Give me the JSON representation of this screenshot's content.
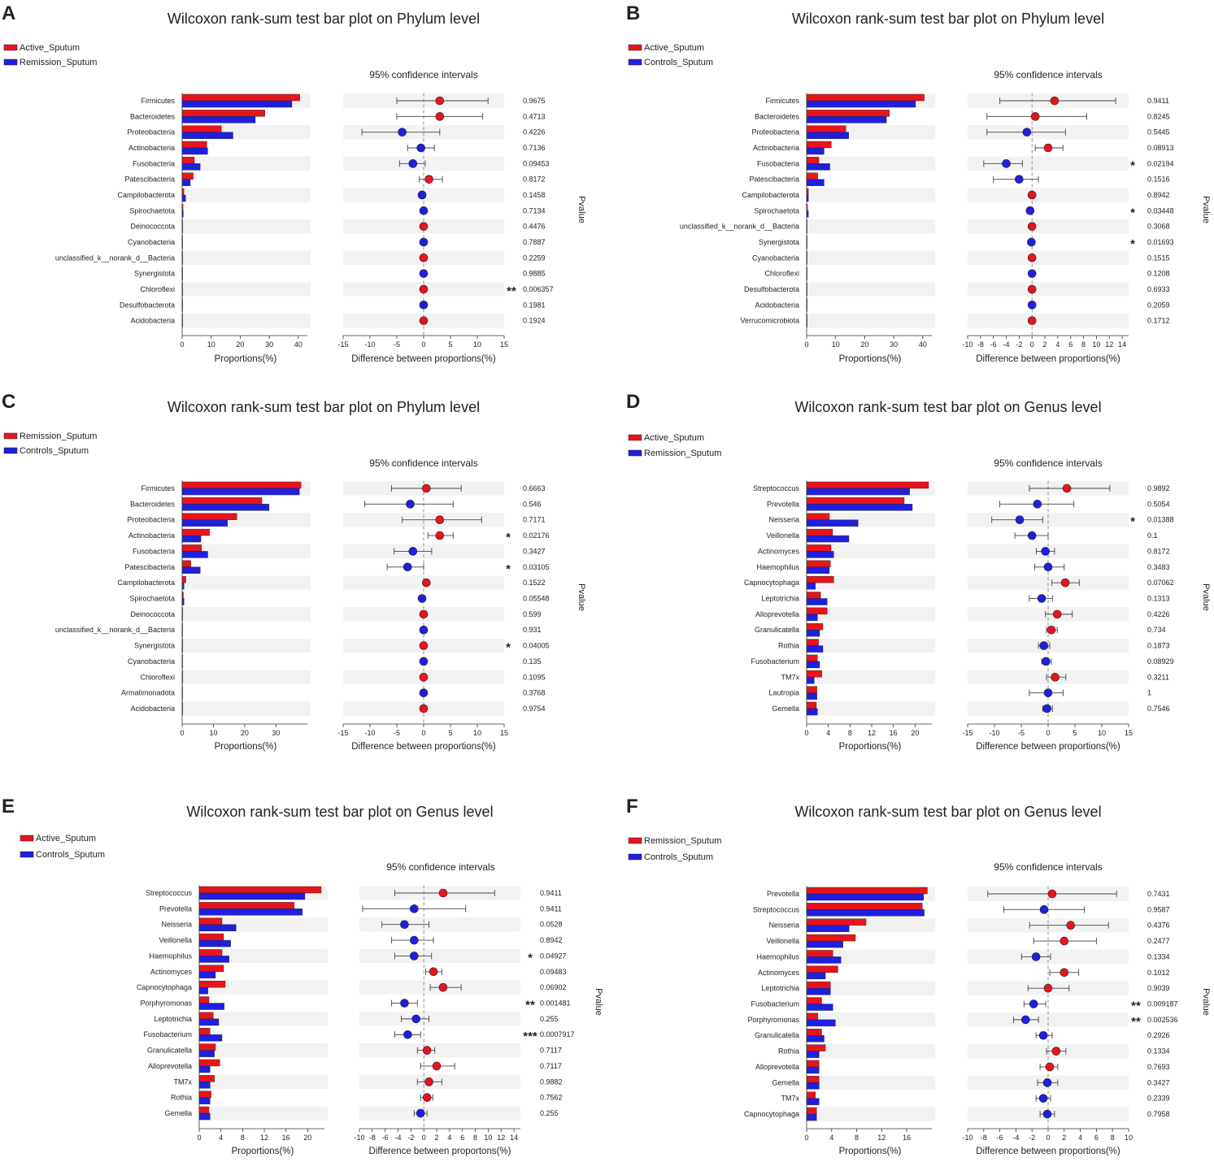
{
  "colors": {
    "group1": "#e8141c",
    "group2": "#1f1fe0",
    "star": "#f06a6a",
    "band": "#f2f2f2",
    "axis": "#333333"
  },
  "chart_data": [
    {
      "type": "bar",
      "panel_letter": "A",
      "title": "Wilcoxon rank-sum test bar plot on Phylum level",
      "legend": [
        "Active_Sputum",
        "Remission_Sputum"
      ],
      "ci_title": "95% confidence intervals",
      "xlabel_left": "Proportions(%)",
      "xlabel_right": "Difference between proportions(%)",
      "pvalue_label": "Pvalue",
      "prop_ticks": [
        0,
        10,
        20,
        30,
        40
      ],
      "prop_max": 42,
      "diff_ticks": [
        -15,
        -10,
        -5,
        0,
        5,
        10,
        15
      ],
      "diff_range": [
        -15,
        15
      ],
      "categories": [
        "Firmicutes",
        "Bacteroidetes",
        "Proteobacteria",
        "Actinobacteria",
        "Fusobacteria",
        "Patescibacteria",
        "Campilobacterota",
        "Spirochaetota",
        "Deinococcota",
        "Cyanobacteria",
        "unclassified_k__norank_d__Bacteria",
        "Synergistota",
        "Chloroflexi",
        "Desulfobacterota",
        "Acidobacteria"
      ],
      "series": [
        {
          "name": "Active_Sputum",
          "values": [
            40.5,
            28.5,
            13.5,
            8.5,
            4.2,
            3.8,
            0.6,
            0.3,
            0.1,
            0.1,
            0.1,
            0.1,
            0.05,
            0.05,
            0.05
          ]
        },
        {
          "name": "Remission_Sputum",
          "values": [
            37.8,
            25.2,
            17.5,
            8.8,
            6.2,
            2.8,
            1.2,
            0.4,
            0.1,
            0.1,
            0.1,
            0.1,
            0.05,
            0.05,
            0.05
          ]
        }
      ],
      "diff": [
        3.0,
        3.0,
        -4.0,
        -0.5,
        -2.0,
        1.0,
        -0.3,
        0.0,
        0.0,
        0.0,
        0.0,
        0.0,
        0.0,
        0.0,
        0.0
      ],
      "ci_low": [
        -5.0,
        -5.0,
        -11.5,
        -3.0,
        -4.5,
        -0.8,
        -0.8,
        -0.2,
        -0.1,
        -0.1,
        -0.1,
        -0.1,
        -0.1,
        -0.1,
        -0.1
      ],
      "ci_high": [
        12.0,
        11.0,
        3.0,
        2.0,
        0.3,
        3.5,
        0.3,
        0.2,
        0.1,
        0.1,
        0.1,
        0.1,
        0.1,
        0.1,
        0.1
      ],
      "pvalues": [
        "0.9675",
        "0.4713",
        "0.4226",
        "0.7136",
        "0.09453",
        "0.8172",
        "0.1458",
        "0.7134",
        "0.4476",
        "0.7887",
        "0.2259",
        "0.9885",
        "0.006357",
        "0.1981",
        "0.1924"
      ],
      "sig": [
        "",
        "",
        "",
        "",
        "",
        "",
        "",
        "",
        "",
        "",
        "",
        "",
        "**",
        "",
        ""
      ]
    },
    {
      "type": "bar",
      "panel_letter": "B",
      "title": "Wilcoxon rank-sum test bar plot on Phylum level",
      "legend": [
        "Active_Sputum",
        "Controls_Sputum"
      ],
      "ci_title": "95% confidence intervals",
      "xlabel_left": "Proportions(%)",
      "xlabel_right": "Difference between proportions(%)",
      "pvalue_label": "Pvalue",
      "prop_ticks": [
        0,
        10,
        20,
        30,
        40
      ],
      "prop_max": 42,
      "diff_ticks": [
        -10,
        -8,
        -6,
        -4,
        -2,
        0,
        2,
        4,
        6,
        8,
        10,
        12,
        14
      ],
      "diff_range": [
        -10,
        15
      ],
      "categories": [
        "Firmicutes",
        "Bacteroidetes",
        "Proteobacteria",
        "Actinobacteria",
        "Fusobacteria",
        "Patescibacteria",
        "Campilobacterota",
        "Spirochaetota",
        "unclassified_k__norank_d__Bacteria",
        "Synergistota",
        "Cyanobacteria",
        "Chloroflexi",
        "Desulfobacterota",
        "Acidobacteria",
        "Verrucomicrobiota"
      ],
      "series": [
        {
          "name": "Active_Sputum",
          "values": [
            40.5,
            28.5,
            13.5,
            8.5,
            4.2,
            3.8,
            0.6,
            0.3,
            0.1,
            0.1,
            0.1,
            0.05,
            0.05,
            0.05,
            0.05
          ]
        },
        {
          "name": "Controls_Sputum",
          "values": [
            37.5,
            27.5,
            14.5,
            6.0,
            8.0,
            6.0,
            0.6,
            0.6,
            0.1,
            0.05,
            0.05,
            0.05,
            0.05,
            0.05,
            0.05
          ]
        }
      ],
      "diff": [
        3.5,
        0.5,
        -0.8,
        2.5,
        -4.0,
        -2.0,
        0.0,
        -0.3,
        0.0,
        -0.1,
        0.0,
        0.0,
        0.0,
        0.0,
        0.0
      ],
      "ci_low": [
        -5.0,
        -7.0,
        -7.0,
        0.5,
        -7.5,
        -6.0,
        -0.3,
        -0.6,
        -0.1,
        -0.3,
        -0.1,
        -0.1,
        -0.1,
        -0.1,
        -0.1
      ],
      "ci_high": [
        13.0,
        8.5,
        5.2,
        4.8,
        -1.5,
        1.0,
        0.3,
        -0.05,
        0.1,
        0.05,
        0.1,
        0.1,
        0.1,
        0.1,
        0.1
      ],
      "pvalues": [
        "0.9411",
        "0.8245",
        "0.5445",
        "0.08913",
        "0.02194",
        "0.1516",
        "0.8942",
        "0.03448",
        "0.3068",
        "0.01693",
        "0.1515",
        "0.1208",
        "0.6933",
        "0.2059",
        "0.1712"
      ],
      "sig": [
        "",
        "",
        "",
        "",
        "*",
        "",
        "",
        "*",
        "",
        "*",
        "",
        "",
        "",
        "",
        ""
      ]
    },
    {
      "type": "bar",
      "panel_letter": "C",
      "title": "Wilcoxon rank-sum test bar plot on Phylum level",
      "legend": [
        "Remission_Sputum",
        "Controls_Sputum"
      ],
      "ci_title": "95% confidence intervals",
      "xlabel_left": "Proportions(%)",
      "xlabel_right": "Difference between proportions(%)",
      "pvalue_label": "Pvalue",
      "prop_ticks": [
        0,
        10,
        20,
        30
      ],
      "prop_max": 39,
      "diff_ticks": [
        -15,
        -10,
        -5,
        0,
        5,
        10,
        15
      ],
      "diff_range": [
        -15,
        15
      ],
      "categories": [
        "Firmicutes",
        "Bacteroidetes",
        "Proteobacteria",
        "Actinobacteria",
        "Fusobacteria",
        "Patescibacteria",
        "Campilobacterota",
        "Spirochaetota",
        "Deinococcota",
        "unclassified_k__norank_d__Bacteria",
        "Synergistota",
        "Cyanobacteria",
        "Chloroflexi",
        "Armatimonadota",
        "Acidobacteria"
      ],
      "series": [
        {
          "name": "Remission_Sputum",
          "values": [
            38.0,
            25.5,
            17.5,
            8.8,
            6.2,
            2.8,
            1.2,
            0.4,
            0.1,
            0.1,
            0.1,
            0.05,
            0.05,
            0.05,
            0.05
          ]
        },
        {
          "name": "Controls_Sputum",
          "values": [
            37.5,
            27.8,
            14.5,
            6.0,
            8.2,
            5.8,
            0.6,
            0.6,
            0.1,
            0.1,
            0.1,
            0.05,
            0.05,
            0.05,
            0.05
          ]
        }
      ],
      "diff": [
        0.5,
        -2.5,
        3.0,
        3.0,
        -2.0,
        -3.0,
        0.5,
        -0.3,
        0.0,
        0.0,
        0.0,
        0.0,
        0.0,
        0.0,
        0.0
      ],
      "ci_low": [
        -6.0,
        -11.0,
        -4.0,
        0.8,
        -5.5,
        -6.8,
        0.0,
        -0.7,
        -0.1,
        -0.1,
        -0.1,
        -0.1,
        -0.1,
        -0.1,
        -0.1
      ],
      "ci_high": [
        7.0,
        5.5,
        10.8,
        5.5,
        1.5,
        0.0,
        1.0,
        0.2,
        0.1,
        0.1,
        0.1,
        0.1,
        0.1,
        0.1,
        0.1
      ],
      "pvalues": [
        "0.6663",
        "0.546",
        "0.7171",
        "0.02176",
        "0.3427",
        "0.03105",
        "0.1522",
        "0.05548",
        "0.599",
        "0.931",
        "0.04005",
        "0.135",
        "0.1095",
        "0.3768",
        "0.9754"
      ],
      "sig": [
        "",
        "",
        "",
        "*",
        "",
        "*",
        "",
        "",
        "",
        "",
        "*",
        "",
        "",
        "",
        ""
      ]
    },
    {
      "type": "bar",
      "panel_letter": "D",
      "title": "Wilcoxon rank-sum test bar plot on Genus level",
      "legend": [
        "Active_Sputum",
        "Remission_Sputum"
      ],
      "ci_title": "95% confidence intervals",
      "xlabel_left": "Proportions(%)",
      "xlabel_right": "Difference between proportions(%)",
      "pvalue_label": "Pvalue",
      "prop_ticks": [
        0,
        4,
        8,
        12,
        16,
        20
      ],
      "prop_max": 22.5,
      "diff_ticks": [
        -15,
        -10,
        -5,
        0,
        5,
        10,
        15
      ],
      "diff_range": [
        -15,
        15
      ],
      "categories": [
        "Streptococcus",
        "Prevotella",
        "Neisseria",
        "Veillonella",
        "Actinomyces",
        "Haemophilus",
        "Capnocytophaga",
        "Leptotrichia",
        "Alloprevotella",
        "Granulicatella",
        "Rothia",
        "Fusobacterium",
        "TM7x",
        "Lautropia",
        "Gemella"
      ],
      "series": [
        {
          "name": "Active_Sputum",
          "values": [
            22.5,
            18.0,
            4.2,
            4.8,
            4.5,
            4.4,
            5.0,
            2.6,
            3.8,
            3.0,
            2.2,
            2.0,
            2.8,
            1.9,
            1.8
          ]
        },
        {
          "name": "Remission_Sputum",
          "values": [
            19.0,
            19.5,
            9.5,
            7.8,
            5.0,
            4.2,
            1.6,
            3.8,
            2.0,
            2.4,
            3.0,
            2.4,
            1.4,
            1.9,
            2.0
          ]
        }
      ],
      "diff": [
        3.5,
        -2.0,
        -5.3,
        -3.0,
        -0.5,
        0.0,
        3.2,
        -1.2,
        1.7,
        0.6,
        -0.8,
        -0.4,
        1.3,
        0.0,
        -0.2
      ],
      "ci_low": [
        -3.5,
        -9.0,
        -10.5,
        -6.2,
        -2.2,
        -2.5,
        0.7,
        -3.5,
        -0.5,
        -0.3,
        -1.8,
        -1.2,
        -0.3,
        -3.5,
        -1.0
      ],
      "ci_high": [
        11.5,
        4.8,
        -1.0,
        0.0,
        1.2,
        3.0,
        5.8,
        0.8,
        4.5,
        1.7,
        0.3,
        0.6,
        3.3,
        2.8,
        0.8
      ],
      "pvalues": [
        "0.9892",
        "0.5054",
        "0.01388",
        "0.1",
        "0.8172",
        "0.3483",
        "0.07062",
        "0.1313",
        "0.4226",
        "0.734",
        "0.1873",
        "0.08929",
        "0.3211",
        "1",
        "0.7546"
      ],
      "sig": [
        "",
        "",
        "*",
        "",
        "",
        "",
        "",
        "",
        "",
        "",
        "",
        "",
        "",
        "",
        ""
      ]
    },
    {
      "type": "bar",
      "panel_letter": "E",
      "title": "Wilcoxon rank-sum test bar plot on Genus level",
      "legend": [
        "Active_Sputum",
        "Controls_Sputum"
      ],
      "ci_title": "95% confidence intervals",
      "xlabel_left": "Proportions(%)",
      "xlabel_right": "Difference between proportons(%)",
      "pvalue_label": "Pvalue",
      "prop_ticks": [
        0,
        4,
        8,
        12,
        16,
        20
      ],
      "prop_max": 22.5,
      "diff_ticks": [
        -10,
        -8,
        -6,
        -4,
        -2,
        0,
        2,
        4,
        6,
        8,
        10,
        12,
        14
      ],
      "diff_range": [
        -10,
        15
      ],
      "categories": [
        "Streptococcus",
        "Prevotella",
        "Neisseria",
        "Veillonella",
        "Haemophilus",
        "Actinomyces",
        "Capnocytophaga",
        "Porphyromonas",
        "Leptotrichia",
        "Fusobacterium",
        "Granulicatella",
        "Alloprevotella",
        "TM7x",
        "Rothia",
        "Gemella"
      ],
      "series": [
        {
          "name": "Active_Sputum",
          "values": [
            22.5,
            17.5,
            4.2,
            4.5,
            4.2,
            4.5,
            4.8,
            1.8,
            2.6,
            2.0,
            3.0,
            3.8,
            2.8,
            2.2,
            1.8
          ]
        },
        {
          "name": "Controls_Sputum",
          "values": [
            19.5,
            19.0,
            6.8,
            5.8,
            5.5,
            3.0,
            1.6,
            4.6,
            3.6,
            4.2,
            2.8,
            2.0,
            2.0,
            2.0,
            2.0
          ]
        }
      ],
      "diff": [
        3.0,
        -1.5,
        -3.0,
        -1.5,
        -1.5,
        1.5,
        3.0,
        -3.0,
        -1.2,
        -2.5,
        0.5,
        2.0,
        0.8,
        0.5,
        -0.5
      ],
      "ci_low": [
        -4.5,
        -9.5,
        -6.5,
        -5.0,
        -4.5,
        0.3,
        1.0,
        -5.0,
        -3.5,
        -4.5,
        -1.0,
        -0.5,
        -1.0,
        -0.5,
        -1.5
      ],
      "ci_high": [
        11.0,
        6.5,
        0.8,
        1.5,
        1.2,
        2.8,
        5.8,
        -1.0,
        0.8,
        -0.5,
        1.7,
        4.8,
        2.8,
        1.4,
        0.5
      ],
      "pvalues": [
        "0.9411",
        "0.9411",
        "0.0528",
        "0.8942",
        "0.04927",
        "0.09483",
        "0.06902",
        "0.001481",
        "0.255",
        "0.0007917",
        "0.7117",
        "0.7117",
        "0.9882",
        "0.7562",
        "0.255"
      ],
      "sig": [
        "",
        "",
        "",
        "",
        "*",
        "",
        "",
        "**",
        "",
        "***",
        "",
        "",
        "",
        "",
        ""
      ]
    },
    {
      "type": "bar",
      "panel_letter": "F",
      "title": "Wilcoxon rank-sum test bar plot on Genus level",
      "legend": [
        "Remission_Sputum",
        "Controls_Sputum"
      ],
      "ci_title": "95% confidence intervals",
      "xlabel_left": "Proportions(%)",
      "xlabel_right": "Difference between proportions(%)",
      "pvalue_label": "Pvalue",
      "prop_ticks": [
        0,
        4,
        8,
        12,
        16
      ],
      "prop_max": 19.5,
      "diff_ticks": [
        -10,
        -8,
        -6,
        -4,
        -2,
        0,
        2,
        4,
        6,
        8,
        10
      ],
      "diff_range": [
        -10,
        10
      ],
      "categories": [
        "Prevotella",
        "Streptococcus",
        "Neisseria",
        "Veillonella",
        "Haemophilus",
        "Actinomyces",
        "Leptotrichia",
        "Fusobacterium",
        "Porphyromonas",
        "Granulicatella",
        "Rothia",
        "Alloprevotella",
        "Gemella",
        "TM7x",
        "Capnocytophaga"
      ],
      "series": [
        {
          "name": "Remission_Sputum",
          "values": [
            19.3,
            18.5,
            9.5,
            7.8,
            4.2,
            5.0,
            3.8,
            2.4,
            1.8,
            2.4,
            3.0,
            2.0,
            2.0,
            1.4,
            1.6
          ]
        },
        {
          "name": "Controls_Sputum",
          "values": [
            18.7,
            18.8,
            6.8,
            5.8,
            5.5,
            3.0,
            3.8,
            4.2,
            4.6,
            2.8,
            2.0,
            2.0,
            2.0,
            2.0,
            1.6
          ]
        }
      ],
      "diff": [
        0.5,
        -0.5,
        2.8,
        2.0,
        -1.5,
        2.0,
        0.0,
        -1.8,
        -2.8,
        -0.6,
        1.0,
        0.2,
        -0.1,
        -0.6,
        -0.1
      ],
      "ci_low": [
        -7.5,
        -5.5,
        -2.3,
        -1.8,
        -3.3,
        0.2,
        -2.5,
        -3.0,
        -4.3,
        -1.5,
        -0.2,
        -1.0,
        -1.3,
        -1.5,
        -1.0
      ],
      "ci_high": [
        8.5,
        4.5,
        7.5,
        6.0,
        0.3,
        3.8,
        2.6,
        -0.3,
        -1.2,
        0.5,
        2.2,
        1.2,
        1.2,
        0.3,
        0.8
      ],
      "pvalues": [
        "0.7431",
        "0.9587",
        "0.4376",
        "0.2477",
        "0.1334",
        "0.1012",
        "0.9039",
        "0.009187",
        "0.002536",
        "0.2926",
        "0.1334",
        "0.7693",
        "0.3427",
        "0.2339",
        "0.7958"
      ],
      "sig": [
        "",
        "",
        "",
        "",
        "",
        "",
        "",
        "**",
        "**",
        "",
        "",
        "",
        "",
        "",
        ""
      ]
    }
  ]
}
